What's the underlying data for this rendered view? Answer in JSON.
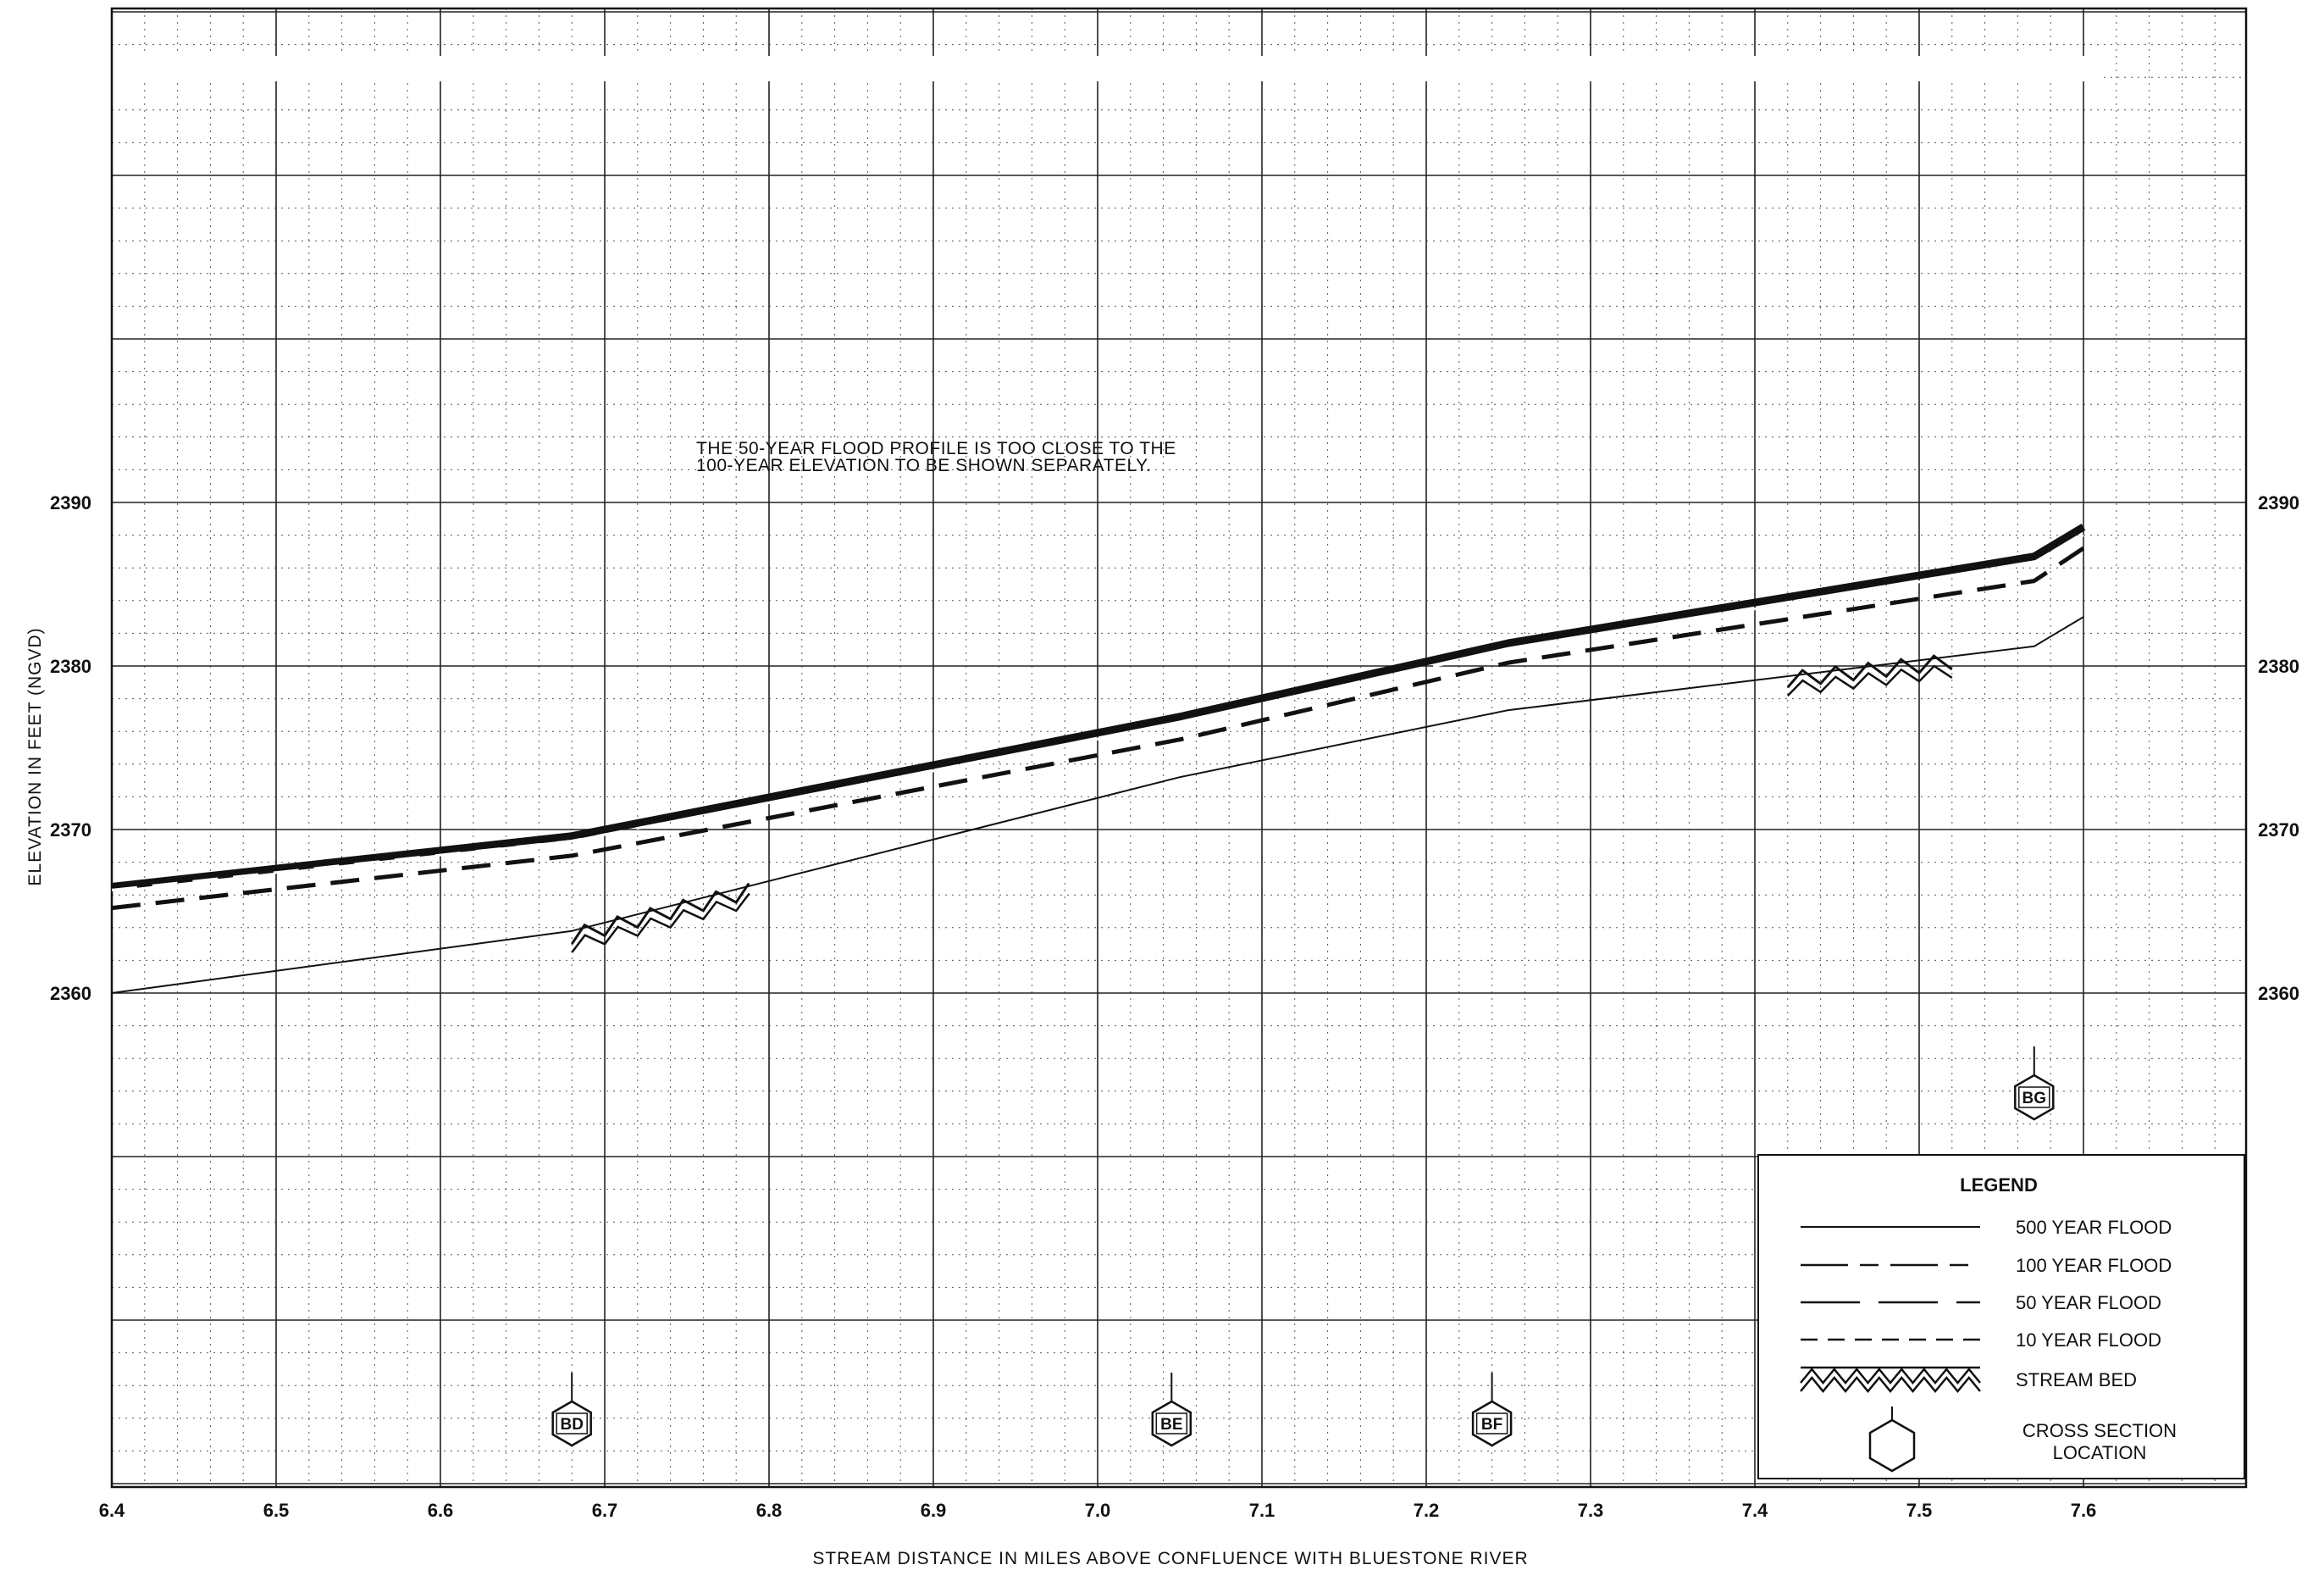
{
  "chart_data": {
    "type": "line",
    "xlim": [
      6.4,
      7.7
    ],
    "ylim": [
      2360,
      2410
    ],
    "x_ticks": [
      "6.4",
      "6.5",
      "6.6",
      "6.7",
      "6.8",
      "6.9",
      "7.0",
      "7.1",
      "7.2",
      "7.3",
      "7.4",
      "7.5",
      "7.6"
    ],
    "y_ticks": [
      "2360",
      "2370",
      "2380",
      "2390"
    ],
    "xlabel": "STREAM DISTANCE IN MILES ABOVE CONFLUENCE WITH BLUESTONE RIVER",
    "ylabel": "ELEVATION   IN   FEET   (NGVD)",
    "note_lines": [
      "THE 50-YEAR FLOOD PROFILE IS TOO CLOSE TO THE",
      "100-YEAR ELEVATION TO BE SHOWN SEPARATELY."
    ],
    "grid": true,
    "legend_position": "bottom-right",
    "series": [
      {
        "key": "y500",
        "x": [
          6.4,
          6.68,
          7.05,
          7.25,
          7.57,
          7.6
        ],
        "y": [
          2366.5,
          2369.6,
          2376.9,
          2381.4,
          2386.7,
          2388.5
        ]
      },
      {
        "key": "y100",
        "x": [
          6.4,
          6.68,
          7.05,
          7.25,
          7.57,
          7.6
        ],
        "y": [
          2366.3,
          2369.3,
          2376.5,
          2381.0,
          2386.3,
          2388.0
        ]
      },
      {
        "key": "y10",
        "x": [
          6.4,
          6.68,
          7.05,
          7.25,
          7.57,
          7.6
        ],
        "y": [
          2365.2,
          2368.4,
          2375.5,
          2380.2,
          2385.2,
          2387.2
        ]
      },
      {
        "key": "y1",
        "x": [
          6.4,
          6.68,
          7.05,
          7.25,
          7.57,
          7.6
        ],
        "y": [
          2360.0,
          2363.8,
          2373.2,
          2377.3,
          2381.2,
          2383.0
        ]
      }
    ],
    "stream_bed_segments": [
      {
        "x": [
          6.68,
          6.79
        ],
        "y": [
          2363.0,
          2365.8
        ]
      },
      {
        "x": [
          7.42,
          7.52
        ],
        "y": [
          2378.7,
          2379.8
        ]
      }
    ],
    "cross_sections": [
      {
        "label": "BD",
        "x": 6.68
      },
      {
        "label": "BE",
        "x": 7.045
      },
      {
        "label": "BF",
        "x": 7.24
      },
      {
        "label": "BG",
        "x": 7.57
      }
    ],
    "legend": {
      "title": "LEGEND",
      "items": [
        {
          "key": "y500",
          "label": "500 YEAR FLOOD"
        },
        {
          "key": "y100",
          "label": "100 YEAR FLOOD"
        },
        {
          "key": "y50",
          "label": "50 YEAR FLOOD"
        },
        {
          "key": "y10",
          "label": "10 YEAR FLOOD"
        },
        {
          "key": "bed",
          "label": "STREAM BED"
        },
        {
          "key": "xsec",
          "label": "CROSS SECTION\nLOCATION"
        }
      ]
    }
  }
}
